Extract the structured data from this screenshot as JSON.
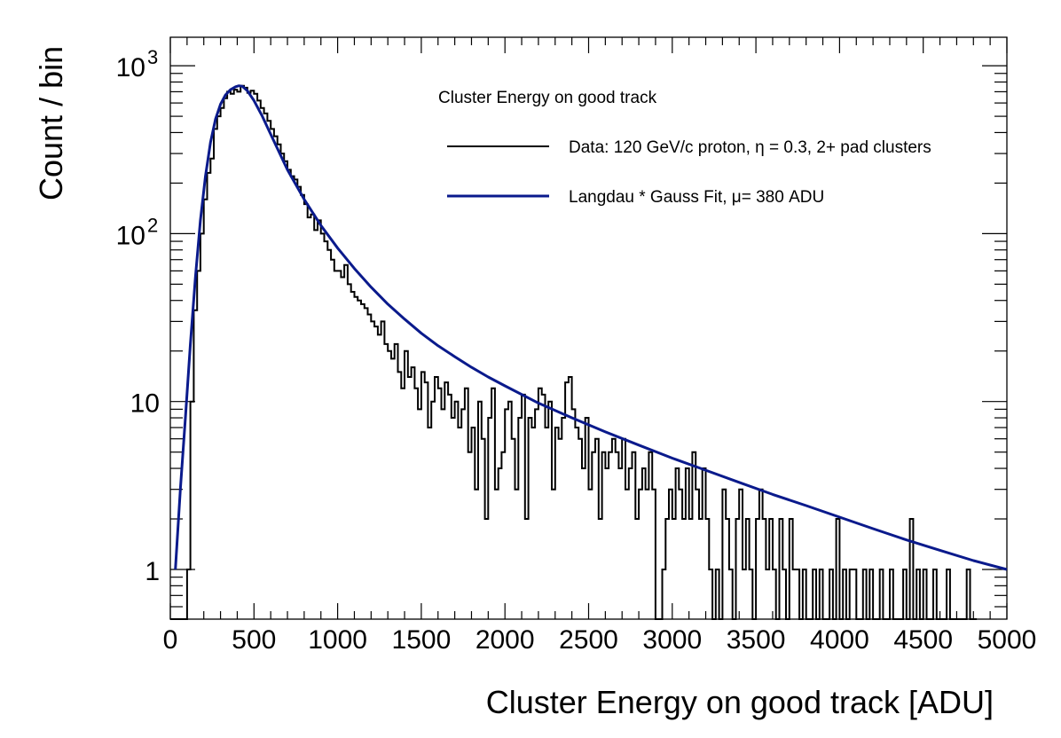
{
  "chart_data": {
    "type": "line",
    "xlabel": "Cluster Energy on good track [ADU]",
    "ylabel": "Count / bin",
    "xlim": [
      0,
      5000
    ],
    "ylim": [
      0.5,
      1500
    ],
    "yscale": "log",
    "grid": false,
    "legend_position": "top-right",
    "x_ticks": [
      0,
      500,
      1000,
      1500,
      2000,
      2500,
      3000,
      3500,
      4000,
      4500,
      5000
    ],
    "x_tick_labels": [
      "0",
      "500",
      "1000",
      "1500",
      "2000",
      "2500",
      "3000",
      "3500",
      "4000",
      "4500",
      "5000"
    ],
    "y_ticks": [
      1,
      10,
      100,
      1000
    ],
    "y_tick_labels": [
      {
        "base": "1",
        "exp": ""
      },
      {
        "base": "10",
        "exp": ""
      },
      {
        "base": "10",
        "exp": "2"
      },
      {
        "base": "10",
        "exp": "3"
      }
    ],
    "legend": {
      "title": "Cluster Energy on good track",
      "entries": [
        {
          "label": "Data: 120 GeV/c proton, η = 0.3, 2+ pad clusters",
          "color": "#000000"
        },
        {
          "label": "Langdau * Gauss Fit, μ= 380 ADU",
          "color": "#0a1a8c"
        }
      ]
    },
    "series": [
      {
        "name": "Data: 120 GeV/c proton, η = 0.3, 2+ pad clusters",
        "kind": "histogram",
        "color": "#000000",
        "bin_edges_start": 0,
        "bin_width": 20,
        "values": [
          0,
          0,
          0,
          0,
          0,
          1,
          10,
          35,
          60,
          100,
          160,
          230,
          280,
          420,
          500,
          560,
          640,
          700,
          680,
          720,
          700,
          760,
          740,
          690,
          710,
          680,
          620,
          560,
          520,
          470,
          420,
          380,
          340,
          300,
          270,
          240,
          220,
          210,
          190,
          170,
          150,
          125,
          130,
          105,
          120,
          100,
          90,
          80,
          70,
          60,
          60,
          55,
          65,
          50,
          45,
          42,
          40,
          38,
          36,
          33,
          30,
          28,
          25,
          30,
          22,
          20,
          18,
          22,
          15,
          12,
          20,
          14,
          16,
          12,
          9,
          15,
          13,
          7,
          10,
          14,
          12,
          9,
          13,
          11,
          8,
          10,
          7,
          9,
          12,
          5,
          7,
          3,
          10,
          6,
          2,
          8,
          12,
          3,
          4,
          5,
          9,
          10,
          6,
          3,
          8,
          11,
          2,
          8,
          7,
          9,
          12,
          11,
          7,
          10,
          3,
          7,
          6,
          8,
          13,
          14,
          9,
          7,
          6,
          4,
          8,
          3,
          5,
          6,
          2,
          5,
          4,
          5,
          6,
          5,
          4,
          6,
          3,
          4,
          5,
          2,
          3,
          4,
          3,
          5,
          3,
          0.4,
          0.4,
          1,
          2,
          3,
          2,
          4,
          3,
          2,
          4,
          2,
          5,
          3,
          2,
          4,
          2,
          1,
          0.4,
          1,
          0.4,
          3,
          2,
          1,
          0.4,
          2,
          3,
          1,
          2,
          1,
          0.4,
          2,
          3,
          2,
          1,
          2,
          1,
          0.4,
          2,
          1,
          0.4,
          2,
          1,
          1,
          0.4,
          1,
          0.4,
          0.4,
          1,
          0.4,
          1,
          0.4,
          0.4,
          1,
          0.4,
          2,
          0.4,
          1,
          0.4,
          1,
          1,
          0.4,
          0.4,
          1,
          0.4,
          1,
          0.4,
          0.4,
          1,
          0.4,
          0.4,
          1,
          0.4,
          0.4,
          0.4,
          1,
          0.4,
          2,
          0.4,
          1,
          0.4,
          1,
          0.4,
          0.4,
          1,
          0.4,
          0.4,
          0.4,
          1,
          0.4,
          0.4,
          0.4,
          0.4,
          0.4,
          1,
          0.4,
          0.4
        ]
      },
      {
        "name": "Langdau * Gauss Fit, μ= 380 ADU",
        "kind": "curve",
        "color": "#0a1a8c",
        "points": [
          [
            30,
            1
          ],
          [
            60,
            3
          ],
          [
            90,
            8
          ],
          [
            120,
            22
          ],
          [
            150,
            55
          ],
          [
            180,
            120
          ],
          [
            210,
            220
          ],
          [
            240,
            350
          ],
          [
            270,
            480
          ],
          [
            300,
            590
          ],
          [
            330,
            670
          ],
          [
            360,
            720
          ],
          [
            390,
            750
          ],
          [
            410,
            760
          ],
          [
            430,
            755
          ],
          [
            460,
            710
          ],
          [
            500,
            620
          ],
          [
            550,
            500
          ],
          [
            600,
            390
          ],
          [
            700,
            240
          ],
          [
            800,
            160
          ],
          [
            900,
            112
          ],
          [
            1000,
            82
          ],
          [
            1100,
            62
          ],
          [
            1200,
            48
          ],
          [
            1300,
            38
          ],
          [
            1400,
            31
          ],
          [
            1500,
            25.5
          ],
          [
            1600,
            21.5
          ],
          [
            1700,
            18.5
          ],
          [
            1800,
            16
          ],
          [
            1900,
            14
          ],
          [
            2000,
            12.4
          ],
          [
            2200,
            9.8
          ],
          [
            2400,
            8
          ],
          [
            2600,
            6.6
          ],
          [
            2800,
            5.5
          ],
          [
            3000,
            4.6
          ],
          [
            3200,
            3.9
          ],
          [
            3400,
            3.3
          ],
          [
            3600,
            2.8
          ],
          [
            3800,
            2.4
          ],
          [
            4000,
            2.05
          ],
          [
            4200,
            1.75
          ],
          [
            4400,
            1.5
          ],
          [
            4600,
            1.3
          ],
          [
            4800,
            1.13
          ],
          [
            5000,
            1
          ]
        ]
      }
    ]
  }
}
